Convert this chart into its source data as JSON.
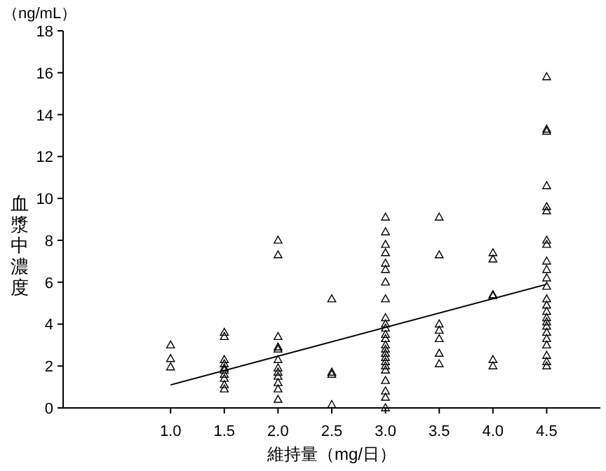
{
  "chart_data": {
    "type": "scatter",
    "xlabel": "維持量（mg/日）",
    "ylabel": "血漿中濃度",
    "annotations": [
      "（ng/mL）"
    ],
    "xlim": [
      0,
      5
    ],
    "ylim": [
      0,
      18
    ],
    "xticks": [
      {
        "value": 1,
        "label": "1.0"
      },
      {
        "value": 1.5,
        "label": "1.5"
      },
      {
        "value": 2,
        "label": "2.0"
      },
      {
        "value": 2.5,
        "label": "2.5"
      },
      {
        "value": 3,
        "label": "3.0"
      },
      {
        "value": 3.5,
        "label": "3.5"
      },
      {
        "value": 4,
        "label": "4.0"
      },
      {
        "value": 4.5,
        "label": "4.5"
      }
    ],
    "yticks": [
      0,
      2,
      4,
      6,
      8,
      10,
      12,
      14,
      16,
      18
    ],
    "grid": false,
    "series": [
      {
        "marker": "triangle",
        "color": "#000000",
        "x": [
          1,
          1,
          1,
          1.5,
          1.5,
          1.5,
          1.5,
          1.5,
          1.5,
          1.5,
          1.5,
          1.5,
          1.5,
          2,
          2,
          2,
          2,
          2,
          2,
          2,
          2,
          2,
          2,
          2,
          2,
          2.5,
          2.5,
          2.5,
          2.5,
          3,
          3,
          3,
          3,
          3,
          3,
          3,
          3,
          3,
          3,
          3,
          3,
          3,
          3,
          3,
          3,
          3,
          3,
          3,
          3,
          3,
          3,
          3,
          3,
          3.5,
          3.5,
          3.5,
          3.5,
          3.5,
          3.5,
          3.5,
          4,
          4,
          4,
          4,
          4,
          4,
          4.5,
          4.5,
          4.5,
          4.5,
          4.5,
          4.5,
          4.5,
          4.5,
          4.5,
          4.5,
          4.5,
          4.5,
          4.5,
          4.5,
          4.5,
          4.5,
          4.5,
          4.5,
          4.5,
          4.5,
          4.5,
          4.5,
          4.5,
          4.5
        ],
        "values": [
          3.0,
          2.35,
          1.95,
          3.6,
          3.4,
          2.3,
          2.1,
          1.9,
          1.8,
          1.6,
          1.4,
          1.1,
          0.9,
          8.0,
          7.3,
          3.4,
          2.9,
          2.8,
          2.3,
          1.9,
          1.7,
          1.5,
          1.2,
          0.9,
          0.4,
          5.2,
          1.7,
          1.6,
          0.15,
          9.1,
          8.4,
          7.8,
          7.4,
          6.9,
          6.6,
          6.0,
          5.2,
          4.3,
          4.0,
          3.8,
          3.5,
          3.3,
          3.0,
          2.8,
          2.6,
          2.4,
          2.2,
          2.0,
          1.8,
          1.3,
          0.8,
          0.5,
          0,
          9.1,
          7.3,
          4.0,
          3.7,
          3.3,
          2.6,
          2.1,
          7.4,
          7.1,
          5.4,
          5.35,
          2.3,
          2.0,
          15.8,
          13.3,
          13.2,
          10.6,
          9.6,
          9.4,
          8.0,
          7.8,
          7.0,
          6.6,
          6.2,
          5.8,
          5.2,
          4.9,
          4.6,
          4.3,
          4.1,
          3.9,
          3.6,
          3.3,
          3.0,
          2.5,
          2.2,
          2.0
        ]
      },
      {
        "type": "line",
        "line_style": "solid",
        "color": "#000000",
        "x": [
          1,
          4.5
        ],
        "values": [
          1.1,
          5.9
        ]
      }
    ]
  }
}
